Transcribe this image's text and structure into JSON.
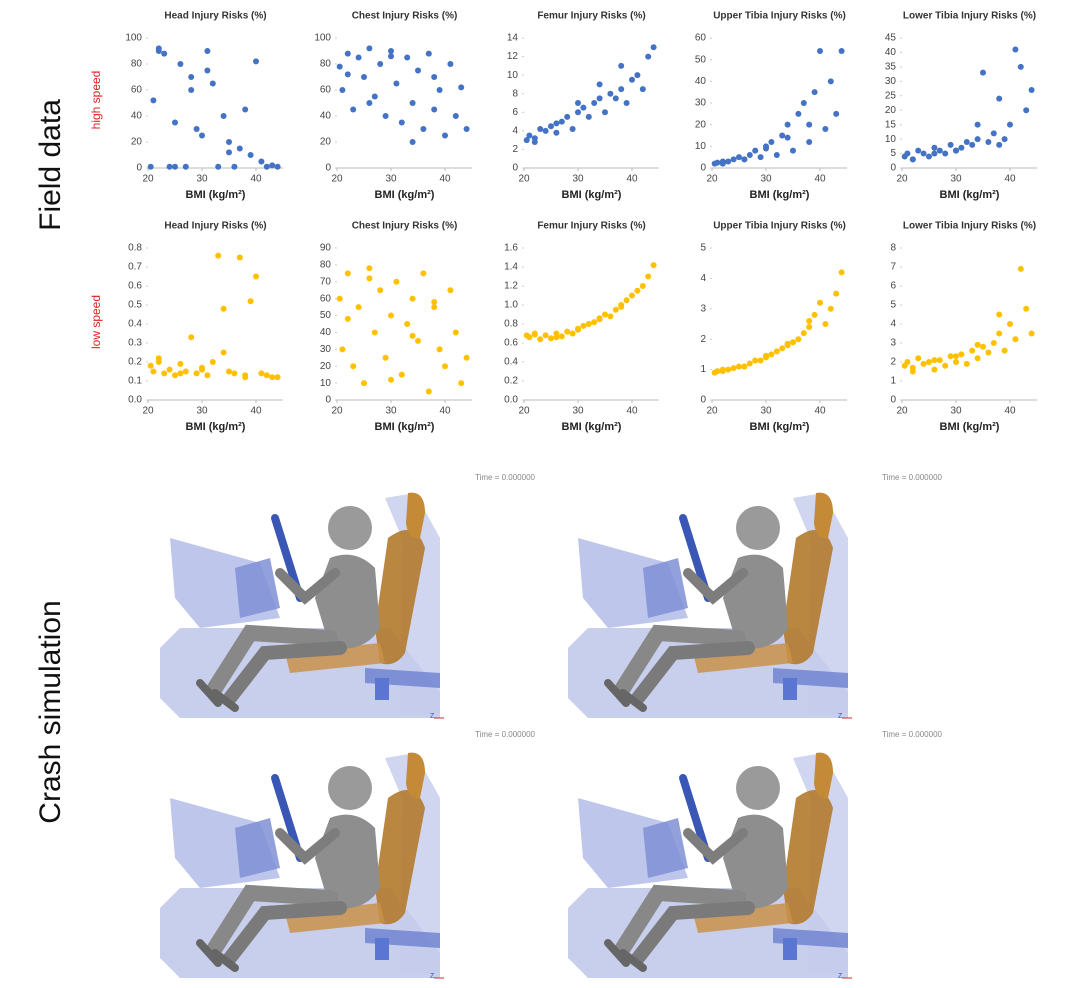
{
  "labels": {
    "field_data": "Field data",
    "crash_simulation": "Crash simulation",
    "high_speed": "high speed",
    "low_speed": "low speed"
  },
  "simulation": {
    "timestamps": [
      "Time = 0.000000",
      "Time = 0.000000",
      "Time = 0.000000",
      "Time = 0.000000"
    ]
  },
  "chart_data": [
    {
      "type": "scatter",
      "title": "Head Injury Risks (%)",
      "x_label": "BMI (kg/m²)",
      "color": "#4472c4",
      "xlim": [
        20,
        45
      ],
      "xticks": [
        20,
        30,
        40
      ],
      "ylim": [
        0,
        100
      ],
      "yticks": [
        0,
        20,
        40,
        60,
        80,
        100
      ],
      "x": [
        20.5,
        21,
        22,
        23,
        24,
        25,
        26,
        27,
        28,
        29,
        30,
        31,
        32,
        33,
        34,
        35,
        36,
        37,
        38,
        39,
        40,
        41,
        42,
        43,
        44,
        22,
        25,
        28,
        31,
        35
      ],
      "values": [
        1,
        52,
        92,
        88,
        1,
        35,
        80,
        1,
        70,
        30,
        25,
        90,
        65,
        1,
        40,
        20,
        1,
        15,
        45,
        10,
        82,
        5,
        1,
        2,
        1,
        90,
        1,
        60,
        75,
        12
      ]
    },
    {
      "type": "scatter",
      "title": "Chest Injury Risks (%)",
      "x_label": "BMI (kg/m²)",
      "color": "#4472c4",
      "xlim": [
        20,
        45
      ],
      "xticks": [
        20,
        30,
        40
      ],
      "ylim": [
        0,
        100
      ],
      "yticks": [
        0,
        20,
        40,
        60,
        80,
        100
      ],
      "x": [
        20.5,
        21,
        22,
        23,
        24,
        25,
        26,
        27,
        28,
        29,
        30,
        31,
        32,
        33,
        34,
        35,
        36,
        37,
        38,
        39,
        40,
        41,
        42,
        43,
        44,
        22,
        26,
        30,
        34,
        38
      ],
      "values": [
        78,
        60,
        88,
        45,
        85,
        70,
        92,
        55,
        80,
        40,
        90,
        65,
        35,
        85,
        50,
        75,
        30,
        88,
        45,
        60,
        25,
        80,
        40,
        62,
        30,
        72,
        50,
        86,
        20,
        70
      ]
    },
    {
      "type": "scatter",
      "title": "Femur Injury Risks (%)",
      "x_label": "BMI (kg/m²)",
      "color": "#4472c4",
      "xlim": [
        20,
        45
      ],
      "xticks": [
        20,
        30,
        40
      ],
      "ylim": [
        0,
        14
      ],
      "yticks": [
        0,
        2,
        4,
        6,
        8,
        10,
        12,
        14
      ],
      "x": [
        20.5,
        21,
        22,
        23,
        24,
        25,
        26,
        27,
        28,
        29,
        30,
        31,
        32,
        33,
        34,
        35,
        36,
        37,
        38,
        39,
        40,
        41,
        42,
        43,
        44,
        22,
        26,
        30,
        34,
        38
      ],
      "values": [
        3,
        3.5,
        2.8,
        4.2,
        4,
        4.5,
        3.8,
        5,
        5.5,
        4.2,
        6,
        6.5,
        5.5,
        7,
        7.5,
        6,
        8,
        7.5,
        8.5,
        7,
        9.5,
        10,
        8.5,
        12,
        13,
        3.2,
        4.8,
        7,
        9,
        11
      ]
    },
    {
      "type": "scatter",
      "title": "Upper Tibia Injury Risks (%)",
      "x_label": "BMI (kg/m²)",
      "color": "#4472c4",
      "xlim": [
        20,
        45
      ],
      "xticks": [
        20,
        30,
        40
      ],
      "ylim": [
        0,
        60
      ],
      "yticks": [
        0,
        10,
        20,
        30,
        40,
        50,
        60
      ],
      "x": [
        20.5,
        21,
        22,
        23,
        24,
        25,
        26,
        27,
        28,
        29,
        30,
        31,
        32,
        33,
        34,
        35,
        36,
        37,
        38,
        39,
        40,
        41,
        42,
        43,
        44,
        22,
        26,
        30,
        34,
        38
      ],
      "values": [
        2,
        2.5,
        3,
        3,
        4,
        5,
        4,
        6,
        8,
        5,
        10,
        12,
        6,
        15,
        20,
        8,
        25,
        30,
        12,
        35,
        54,
        18,
        40,
        25,
        54,
        2,
        4,
        9,
        14,
        20
      ]
    },
    {
      "type": "scatter",
      "title": "Lower Tibia Injury Risks (%)",
      "x_label": "BMI (kg/m²)",
      "color": "#4472c4",
      "xlim": [
        20,
        45
      ],
      "xticks": [
        20,
        30,
        40
      ],
      "ylim": [
        0,
        45
      ],
      "yticks": [
        0,
        5,
        10,
        15,
        20,
        25,
        30,
        35,
        40,
        45
      ],
      "x": [
        20.5,
        21,
        22,
        23,
        24,
        25,
        26,
        27,
        28,
        29,
        30,
        31,
        32,
        33,
        34,
        35,
        36,
        37,
        38,
        39,
        40,
        41,
        42,
        43,
        44,
        22,
        26,
        30,
        34,
        38
      ],
      "values": [
        4,
        5,
        3,
        6,
        5,
        4,
        7,
        6,
        5,
        8,
        6,
        7,
        9,
        8,
        10,
        33,
        9,
        12,
        24,
        10,
        15,
        41,
        35,
        20,
        27,
        3,
        5,
        6,
        15,
        8
      ]
    },
    {
      "type": "scatter",
      "title": "Head Injury Risks (%)",
      "x_label": "BMI (kg/m²)",
      "color": "#ffc000",
      "xlim": [
        20,
        45
      ],
      "xticks": [
        20,
        30,
        40
      ],
      "ylim": [
        0,
        0.8
      ],
      "yticks": [
        {
          "value": 0,
          "label": "0.0"
        },
        0.1,
        0.2,
        0.3,
        0.4,
        0.5,
        0.6,
        0.7,
        0.8
      ],
      "x": [
        20.5,
        21,
        22,
        23,
        24,
        25,
        26,
        27,
        28,
        29,
        30,
        31,
        32,
        33,
        34,
        35,
        36,
        37,
        38,
        39,
        40,
        41,
        42,
        43,
        44,
        22,
        26,
        30,
        34,
        38
      ],
      "values": [
        0.18,
        0.15,
        0.2,
        0.14,
        0.16,
        0.13,
        0.19,
        0.15,
        0.33,
        0.14,
        0.16,
        0.13,
        0.2,
        0.76,
        0.48,
        0.15,
        0.14,
        0.75,
        0.12,
        0.52,
        0.65,
        0.14,
        0.13,
        0.12,
        0.12,
        0.22,
        0.14,
        0.17,
        0.25,
        0.13
      ]
    },
    {
      "type": "scatter",
      "title": "Chest Injury Risks (%)",
      "x_label": "BMI (kg/m²)",
      "color": "#ffc000",
      "xlim": [
        20,
        45
      ],
      "xticks": [
        20,
        30,
        40
      ],
      "ylim": [
        0,
        90
      ],
      "yticks": [
        0,
        10,
        20,
        30,
        40,
        50,
        60,
        70,
        80,
        90
      ],
      "x": [
        20.5,
        21,
        22,
        23,
        24,
        25,
        26,
        27,
        28,
        29,
        30,
        31,
        32,
        33,
        34,
        35,
        36,
        37,
        38,
        39,
        40,
        41,
        42,
        43,
        44,
        22,
        26,
        30,
        34,
        38
      ],
      "values": [
        60,
        30,
        75,
        20,
        55,
        10,
        78,
        40,
        65,
        25,
        50,
        70,
        15,
        45,
        60,
        35,
        75,
        5,
        55,
        30,
        20,
        65,
        40,
        10,
        25,
        48,
        72,
        12,
        38,
        58
      ]
    },
    {
      "type": "scatter",
      "title": "Femur Injury Risks (%)",
      "x_label": "BMI (kg/m²)",
      "color": "#ffc000",
      "xlim": [
        20,
        45
      ],
      "xticks": [
        20,
        30,
        40
      ],
      "ylim": [
        0,
        1.6
      ],
      "yticks": [
        {
          "value": 0,
          "label": "0.0"
        },
        0.2,
        0.4,
        0.6,
        0.8,
        {
          "value": 1,
          "label": "1.0"
        },
        1.2,
        1.4,
        1.6
      ],
      "x": [
        20.5,
        21,
        22,
        23,
        24,
        25,
        26,
        27,
        28,
        29,
        30,
        31,
        32,
        33,
        34,
        35,
        36,
        37,
        38,
        39,
        40,
        41,
        42,
        43,
        44,
        22,
        26,
        30,
        34,
        38
      ],
      "values": [
        0.68,
        0.66,
        0.7,
        0.64,
        0.68,
        0.65,
        0.7,
        0.67,
        0.72,
        0.7,
        0.75,
        0.78,
        0.8,
        0.82,
        0.85,
        0.9,
        0.88,
        0.95,
        1.0,
        1.05,
        1.1,
        1.15,
        1.2,
        1.3,
        1.42,
        0.69,
        0.66,
        0.74,
        0.86,
        0.98
      ]
    },
    {
      "type": "scatter",
      "title": "Upper Tibia Injury Risks (%)",
      "x_label": "BMI (kg/m²)",
      "color": "#ffc000",
      "xlim": [
        20,
        45
      ],
      "xticks": [
        20,
        30,
        40
      ],
      "ylim": [
        0,
        5
      ],
      "yticks": [
        0,
        1,
        2,
        3,
        4,
        5
      ],
      "x": [
        20.5,
        21,
        22,
        23,
        24,
        25,
        26,
        27,
        28,
        29,
        30,
        31,
        32,
        33,
        34,
        35,
        36,
        37,
        38,
        39,
        40,
        41,
        42,
        43,
        44,
        22,
        26,
        30,
        34,
        38
      ],
      "values": [
        0.9,
        0.95,
        1,
        1,
        1.05,
        1.1,
        1.1,
        1.2,
        1.3,
        1.3,
        1.4,
        1.5,
        1.6,
        1.7,
        1.8,
        1.9,
        2,
        2.2,
        2.4,
        2.8,
        3.2,
        2.5,
        3,
        3.5,
        4.2,
        0.95,
        1.1,
        1.45,
        1.85,
        2.6
      ]
    },
    {
      "type": "scatter",
      "title": "Lower Tibia Injury Risks (%)",
      "x_label": "BMI (kg/m²)",
      "color": "#ffc000",
      "xlim": [
        20,
        45
      ],
      "xticks": [
        20,
        30,
        40
      ],
      "ylim": [
        0,
        8
      ],
      "yticks": [
        0,
        1,
        2,
        3,
        4,
        5,
        6,
        7,
        8
      ],
      "x": [
        20.5,
        21,
        22,
        23,
        24,
        25,
        26,
        27,
        28,
        29,
        30,
        31,
        32,
        33,
        34,
        35,
        36,
        37,
        38,
        39,
        40,
        41,
        42,
        43,
        44,
        22,
        26,
        30,
        34,
        38
      ],
      "values": [
        1.8,
        2,
        1.5,
        2.2,
        1.9,
        2,
        1.6,
        2.1,
        1.8,
        2.3,
        2,
        2.4,
        1.9,
        2.6,
        2.2,
        2.8,
        2.5,
        3,
        3.5,
        2.6,
        4,
        3.2,
        6.9,
        4.8,
        3.5,
        1.7,
        2.1,
        2.3,
        2.9,
        4.5
      ]
    }
  ]
}
